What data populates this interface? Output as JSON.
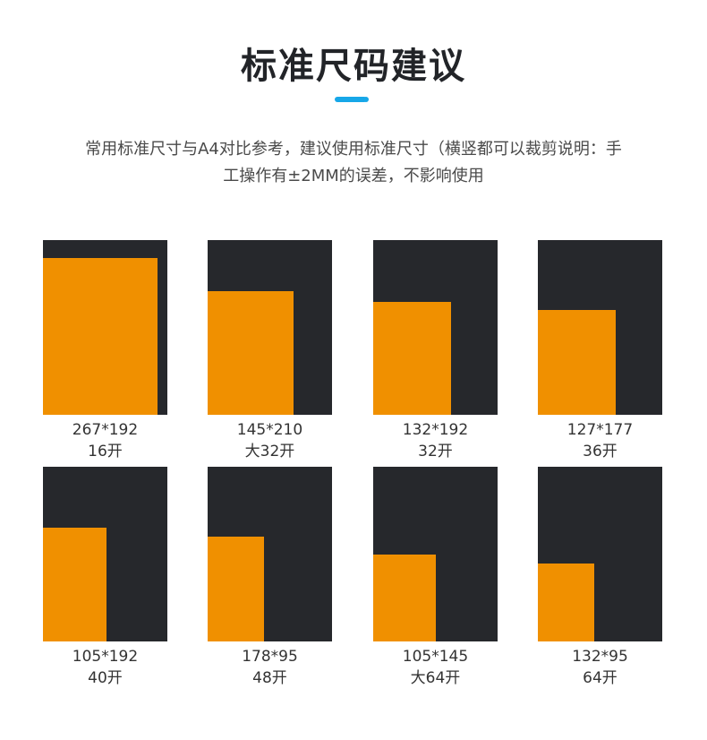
{
  "header": {
    "title": "标准尺码建议",
    "accent_color": "#17a7e8"
  },
  "description": {
    "line1": "常用标准尺寸与A4对比参考，建议使用标准尺寸（横竖都可以裁剪说明：手",
    "line2": "工操作有±2MM的误差，不影响使用"
  },
  "colors": {
    "frame": "#26282c",
    "fill": "#f09000"
  },
  "sizes": [
    {
      "dims": "267*192",
      "name": "16开"
    },
    {
      "dims": "145*210",
      "name": "大32开"
    },
    {
      "dims": "132*192",
      "name": "32开"
    },
    {
      "dims": "127*177",
      "name": "36开"
    },
    {
      "dims": "105*192",
      "name": "40开"
    },
    {
      "dims": "178*95",
      "name": "48开"
    },
    {
      "dims": "105*145",
      "name": "大64开"
    },
    {
      "dims": "132*95",
      "name": "64开"
    }
  ]
}
